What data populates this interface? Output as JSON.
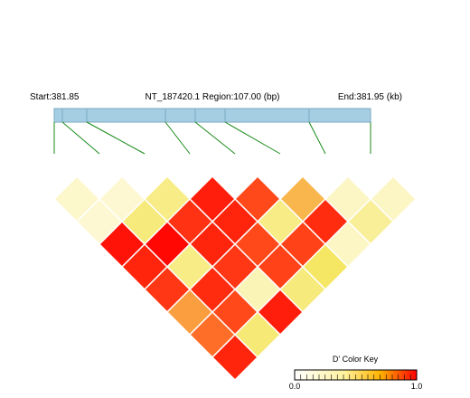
{
  "chart_data": {
    "type": "heatmap",
    "title": "NT_187420.1 Region:107.00 (bp)",
    "start_label": "Start:381.85",
    "end_label": "End:381.95 (kb)",
    "markers": 9,
    "colors": {
      "track_fill": "#a6cee3",
      "track_stroke": "#7aa9c2",
      "connector": "#1a8a1a",
      "cell_border": "#ffffff"
    },
    "ld_matrix": [
      [
        0.12,
        0.1,
        0.35,
        0.92,
        0.8,
        0.55,
        0.15,
        0.15
      ],
      [
        0.1,
        0.38,
        0.86,
        0.9,
        0.35,
        0.88,
        0.3
      ],
      [
        0.95,
        0.98,
        0.9,
        0.8,
        0.82,
        0.15
      ],
      [
        0.9,
        0.35,
        0.85,
        0.82,
        0.45
      ],
      [
        0.85,
        0.88,
        0.2,
        0.38
      ],
      [
        0.6,
        0.8,
        0.92
      ],
      [
        0.7,
        0.4
      ],
      [
        0.9
      ]
    ],
    "color_key": {
      "title": "D' Color Key",
      "min_label": "0.0",
      "max_label": "1.0",
      "min": 0.0,
      "max": 1.0
    }
  }
}
